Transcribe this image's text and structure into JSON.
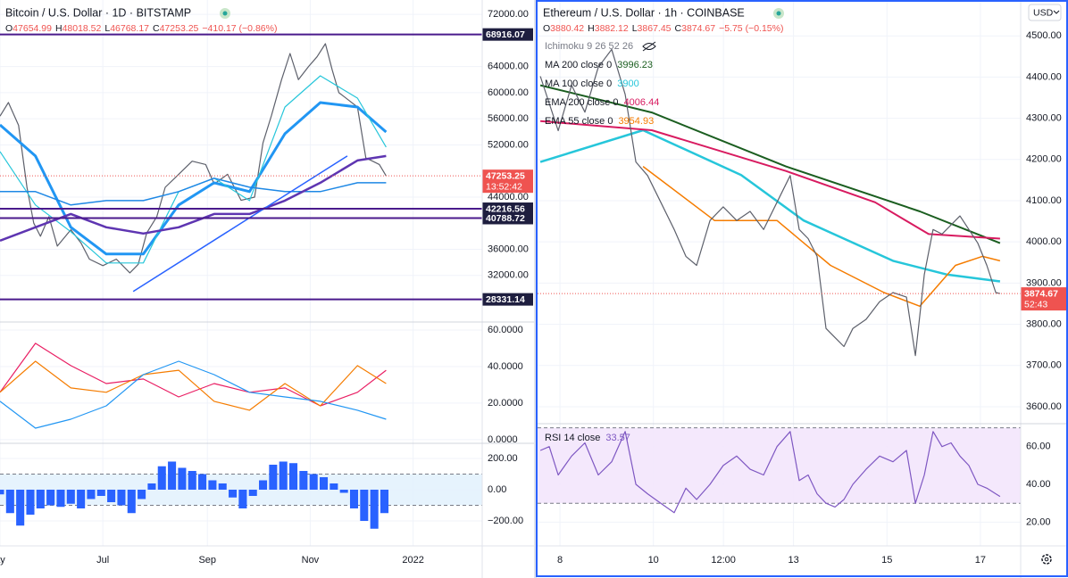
{
  "chart_data": [
    {
      "type": "line",
      "title": "Bitcoin / U.S. Dollar · 1D · BITSTAMP",
      "ohlc": [
        {
          "key": "O",
          "value": 47654.99
        },
        {
          "key": "H",
          "value": 48018.52
        },
        {
          "key": "L",
          "value": 46768.17
        },
        {
          "key": "C",
          "value": 47253.25
        }
      ],
      "change": "−410.17 (−0.86%)",
      "xlim": [
        121,
        407
      ],
      "xticks": [
        {
          "value": 121,
          "label": "ay"
        },
        {
          "value": 182,
          "label": "Jul"
        },
        {
          "value": 244,
          "label": "Sep"
        },
        {
          "value": 305,
          "label": "Nov"
        },
        {
          "value": 366,
          "label": "2022"
        }
      ],
      "ylim": [
        25000,
        74200
      ],
      "yticks": [
        {
          "value": 72000,
          "label": "72000.00"
        },
        {
          "value": 64000,
          "label": "64000.00"
        },
        {
          "value": 60000,
          "label": "60000.00"
        },
        {
          "value": 56000,
          "label": "56000.00"
        },
        {
          "value": 52000,
          "label": "52000.00"
        },
        {
          "value": 44000,
          "label": "44000.00"
        },
        {
          "value": 36000,
          "label": "36000.00"
        },
        {
          "value": 32000,
          "label": "32000.00"
        }
      ],
      "grid": true,
      "series": [
        {
          "color": "#5d606b",
          "width": 1.2,
          "x": [
            121,
            126,
            132,
            137,
            141,
            145,
            150,
            155,
            163,
            169,
            174,
            182,
            190,
            198,
            203,
            208,
            214,
            219,
            227,
            235,
            243,
            248,
            256,
            264,
            272,
            277,
            282,
            288,
            293,
            298,
            304,
            309,
            314,
            318,
            322,
            327,
            333,
            338,
            342,
            346,
            350
          ],
          "values": [
            56400,
            58500,
            55000,
            45500,
            40000,
            38000,
            41000,
            36500,
            39000,
            37000,
            34500,
            33500,
            34500,
            32400,
            33700,
            38500,
            41000,
            45500,
            47500,
            49500,
            49000,
            46000,
            47500,
            43500,
            44000,
            52300,
            56500,
            62000,
            66000,
            62000,
            64000,
            65500,
            67500,
            63500,
            60000,
            59000,
            57800,
            50000,
            49500,
            49000,
            47253.25
          ]
        },
        {
          "color": "#2196f3",
          "width": 3,
          "x": [
            121,
            142,
            163,
            184,
            206,
            227,
            248,
            269,
            290,
            311,
            333,
            350
          ],
          "values": [
            55070,
            50300,
            39380,
            35280,
            35280,
            42790,
            46200,
            44840,
            53710,
            58490,
            57800,
            53980
          ]
        },
        {
          "color": "#26c6da",
          "width": 1.2,
          "x": [
            121,
            142,
            163,
            184,
            206,
            227,
            248,
            269,
            290,
            311,
            333,
            350
          ],
          "values": [
            50980,
            42790,
            38690,
            33910,
            33910,
            44840,
            46890,
            43470,
            57800,
            62580,
            59170,
            51660
          ]
        },
        {
          "color": "#1e88e5",
          "width": 1.5,
          "x": [
            121,
            142,
            163,
            184,
            206,
            227,
            248,
            269,
            290,
            311,
            333,
            350
          ],
          "values": [
            44840,
            44840,
            42790,
            43470,
            43470,
            44840,
            46890,
            45520,
            44840,
            44840,
            46200,
            46200
          ]
        },
        {
          "color": "#5e35b1",
          "width": 2.5,
          "x": [
            121,
            142,
            163,
            184,
            206,
            227,
            248,
            269,
            290,
            311,
            333,
            350
          ],
          "values": [
            37330,
            39380,
            41420,
            39380,
            38420,
            39380,
            41420,
            41420,
            43470,
            46200,
            49610,
            50300
          ]
        }
      ],
      "trendline": {
        "color": "#2962ff",
        "x": [
          200,
          327
        ],
        "values": [
          29550,
          50300
        ]
      },
      "hlines": [
        {
          "value": 68916.07,
          "color": "#4a1a8c"
        },
        {
          "value": 42216.56,
          "color": "#4a1a8c"
        },
        {
          "value": 40788.72,
          "color": "#4a1a8c"
        },
        {
          "value": 28331.14,
          "color": "#4a1a8c"
        }
      ],
      "price_label": {
        "value": 47253.25,
        "countdown": "13:52:42",
        "color": "#ef5350"
      },
      "panels": [
        {
          "ylim": [
            -2,
            63.9
          ],
          "yticks": [
            {
              "value": 60,
              "label": "60.0000"
            },
            {
              "value": 40,
              "label": "40.0000"
            },
            {
              "value": 20,
              "label": "20.0000"
            },
            {
              "value": 0,
              "label": "0.0000"
            }
          ],
          "series": [
            {
              "color": "#e91e63",
              "width": 1.2,
              "x": [
                121,
                142,
                163,
                184,
                206,
                227,
                248,
                269,
                290,
                311,
                333,
                350
              ],
              "values": [
                25.9,
                52.7,
                40.5,
                30.7,
                33.2,
                23.4,
                30.7,
                25.9,
                28.3,
                18.5,
                25.9,
                38.0
              ]
            },
            {
              "color": "#f57c00",
              "width": 1.2,
              "x": [
                121,
                142,
                163,
                184,
                206,
                227,
                248,
                269,
                290,
                311,
                333,
                350
              ],
              "values": [
                25.9,
                42.9,
                28.3,
                25.9,
                35.6,
                38.0,
                21.0,
                16.1,
                30.7,
                18.5,
                40.5,
                30.7
              ]
            },
            {
              "color": "#2196f3",
              "width": 1.2,
              "x": [
                121,
                142,
                163,
                184,
                206,
                227,
                248,
                269,
                290,
                311,
                333,
                350
              ],
              "values": [
                21.0,
                6.3,
                11.2,
                18.5,
                35.6,
                42.9,
                35.6,
                25.9,
                23.4,
                21.0,
                16.1,
                11.2
              ]
            }
          ]
        },
        {
          "ylim": [
            -360,
            297
          ],
          "yticks": [
            {
              "value": 200,
              "label": "200.00"
            },
            {
              "value": 0,
              "label": "0.00"
            },
            {
              "value": -200,
              "label": "−200.00"
            }
          ],
          "bands": [
            100,
            -100
          ],
          "series": [
            {
              "type": "histogram",
              "color": "#2962ff",
              "x": [
                121,
                127,
                133,
                139,
                145,
                151,
                157,
                163,
                169,
                175,
                181,
                187,
                193,
                199,
                205,
                211,
                217,
                223,
                229,
                235,
                241,
                247,
                253,
                259,
                265,
                271,
                277,
                283,
                289,
                295,
                301,
                307,
                313,
                319,
                325,
                331,
                337,
                343,
                349
              ],
              "values": [
                -30,
                -150,
                -230,
                -160,
                -120,
                -100,
                -110,
                -90,
                -120,
                -60,
                -40,
                -80,
                -100,
                -150,
                -60,
                40,
                150,
                180,
                140,
                120,
                100,
                60,
                40,
                -50,
                -120,
                -40,
                60,
                160,
                180,
                170,
                120,
                100,
                80,
                40,
                -20,
                -120,
                -200,
                -250,
                -150
              ]
            }
          ]
        }
      ]
    },
    {
      "type": "line",
      "title": "Ethereum / U.S. Dollar · 1h · COINBASE",
      "currency_selector": "USD",
      "ohlc": [
        {
          "key": "O",
          "value": 3880.42
        },
        {
          "key": "H",
          "value": 3882.12
        },
        {
          "key": "L",
          "value": 3867.45
        },
        {
          "key": "C",
          "value": 3874.67
        }
      ],
      "change": "−5.75 (−0.15%)",
      "indicator_label": "Ichimoku 9 26 52 26",
      "xlim": [
        -11.5,
        236.7
      ],
      "xticks": [
        {
          "value": 0,
          "label": "8"
        },
        {
          "value": 48,
          "label": "10"
        },
        {
          "value": 84,
          "label": "12:00"
        },
        {
          "value": 120,
          "label": "13"
        },
        {
          "value": 168,
          "label": "15"
        },
        {
          "value": 216,
          "label": "17"
        }
      ],
      "ylim": [
        3561,
        4587
      ],
      "yticks": [
        {
          "value": 4500,
          "label": "4500.00"
        },
        {
          "value": 4400,
          "label": "4400.00"
        },
        {
          "value": 4300,
          "label": "4300.00"
        },
        {
          "value": 4200,
          "label": "4200.00"
        },
        {
          "value": 4100,
          "label": "4100.00"
        },
        {
          "value": 4000,
          "label": "4000.00"
        },
        {
          "value": 3900,
          "label": "3900.00"
        },
        {
          "value": 3800,
          "label": "3800.00"
        },
        {
          "value": 3700,
          "label": "3700.00"
        },
        {
          "value": 3600,
          "label": "3600.00"
        }
      ],
      "grid": true,
      "series": [
        {
          "name": "MA 200 close 0",
          "legend_value": 3996.23,
          "color": "#1b5e20",
          "width": 2,
          "x": [
            -10.1,
            47.2,
            116.1,
            184.9,
            226.1
          ],
          "values": [
            4380,
            4314,
            4183,
            4074,
            3997
          ]
        },
        {
          "name": "MA 100 close 0",
          "legend_value": 3900.0,
          "color": "#26c6da",
          "width": 2.5,
          "x": [
            -10.1,
            42.7,
            93.1,
            125.2,
            171.1,
            198.6,
            226.1
          ],
          "values": [
            4194,
            4271,
            4162,
            4052,
            3954,
            3921,
            3904
          ]
        },
        {
          "name": "EMA 200 close 0",
          "legend_value": 4006.44,
          "color": "#d81b60",
          "width": 2,
          "x": [
            -10.1,
            47.2,
            116.1,
            161.9,
            189.4,
            226.1
          ],
          "values": [
            4293,
            4271,
            4172,
            4096,
            4019,
            4008
          ]
        },
        {
          "name": "EMA 55 close 0",
          "legend_value": 3954.93,
          "color": "#f57c00",
          "width": 1.5,
          "x": [
            42.7,
            79.4,
            111.5,
            139,
            166.5,
            184.9,
            203.2,
            217,
            226.1
          ],
          "values": [
            4183,
            4052,
            4052,
            3943,
            3877,
            3844,
            3943,
            3965,
            3954
          ]
        },
        {
          "color": "#5d606b",
          "width": 1.2,
          "x": [
            -10.1,
            -5.5,
            -0.9,
            6,
            12.8,
            19.7,
            26.6,
            33.5,
            39,
            45,
            51.8,
            58.7,
            64.7,
            70.2,
            77.1,
            83.9,
            90.8,
            97.7,
            104.6,
            111.5,
            118.3,
            122.9,
            127.5,
            132.1,
            136.7,
            141.3,
            145.9,
            150.5,
            157.3,
            164.2,
            171.1,
            178,
            182.6,
            187.2,
            191.7,
            196.3,
            200.9,
            205.5,
            210.1,
            214.7,
            219.3,
            223.9,
            226.1
          ],
          "values": [
            4402,
            4336,
            4270,
            4380,
            4315,
            4424,
            4467,
            4358,
            4194,
            4161,
            4096,
            4030,
            3965,
            3943,
            4052,
            4085,
            4052,
            4074,
            4030,
            4096,
            4161,
            4030,
            4008,
            3965,
            3790,
            3768,
            3746,
            3790,
            3812,
            3855,
            3877,
            3866,
            3724,
            3921,
            4030,
            4019,
            4041,
            4063,
            4030,
            3997,
            3943,
            3877,
            3874.67
          ]
        }
      ],
      "price_label": {
        "value": 3874.67,
        "countdown": "52:43",
        "color": "#ef5350"
      },
      "panels": [
        {
          "name": "RSI 14 close",
          "legend_value": 33.57,
          "ylim": [
            7.4,
            71.7
          ],
          "yticks": [
            {
              "value": 60,
              "label": "60.00"
            },
            {
              "value": 40,
              "label": "40.00"
            },
            {
              "value": 20,
              "label": "20.00"
            }
          ],
          "bands": [
            70,
            30
          ],
          "series": [
            {
              "color": "#7e57c2",
              "width": 1.2,
              "x": [
                -10.1,
                -5.5,
                -0.9,
                6,
                12.8,
                19.7,
                26.6,
                33.5,
                39,
                45,
                51.8,
                58.7,
                64.7,
                70.2,
                77.1,
                83.9,
                90.8,
                97.7,
                104.6,
                111.5,
                118.3,
                122.9,
                127.5,
                132.1,
                136.7,
                141.3,
                145.9,
                150.5,
                157.3,
                164.2,
                171.1,
                178,
                182.6,
                187.2,
                191.7,
                196.3,
                200.9,
                205.5,
                210.1,
                214.7,
                219.3,
                223.9,
                226.1
              ],
              "values": [
                58,
                60,
                45,
                55,
                62,
                45,
                52,
                68,
                40,
                35,
                30,
                25,
                38,
                32,
                40,
                50,
                55,
                48,
                45,
                60,
                68,
                42,
                45,
                35,
                30,
                28,
                32,
                40,
                48,
                55,
                52,
                58,
                30,
                45,
                68,
                60,
                62,
                55,
                50,
                40,
                38,
                35,
                33.57
              ]
            }
          ]
        }
      ]
    }
  ]
}
